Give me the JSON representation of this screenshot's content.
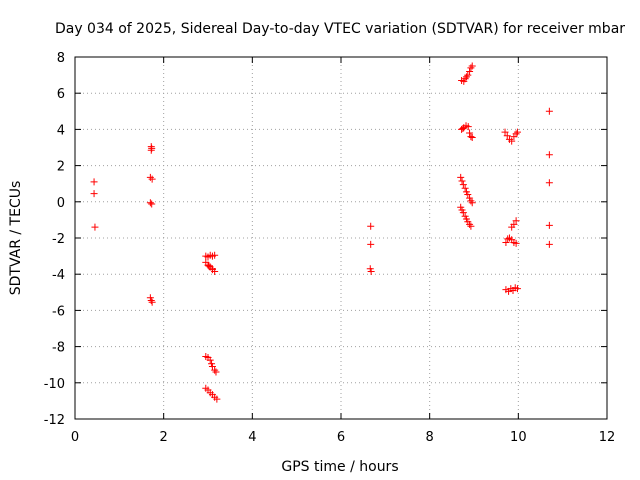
{
  "chart_data": {
    "type": "scatter",
    "title": "Day 034 of 2025, Sidereal Day-to-day VTEC variation (SDTVAR) for receiver mbar",
    "xlabel": "GPS time / hours",
    "ylabel": "SDTVAR / TECUs",
    "xlim": [
      0,
      12
    ],
    "ylim": [
      -12,
      8
    ],
    "x_ticks": [
      0,
      2,
      4,
      6,
      8,
      10,
      12
    ],
    "y_ticks": [
      -12,
      -10,
      -8,
      -6,
      -4,
      -2,
      0,
      2,
      4,
      6,
      8
    ],
    "grid": true,
    "marker": "plus",
    "colors": {
      "series": "#ff0000",
      "axes": "#000000",
      "grid": "#a0a0a0"
    },
    "series": [
      {
        "name": "SDTVAR",
        "points": [
          [
            0.43,
            1.1
          ],
          [
            0.43,
            0.45
          ],
          [
            0.45,
            -1.4
          ],
          [
            1.72,
            3.05
          ],
          [
            1.73,
            2.95
          ],
          [
            1.72,
            2.85
          ],
          [
            1.7,
            1.35
          ],
          [
            1.74,
            1.25
          ],
          [
            1.7,
            -0.05
          ],
          [
            1.73,
            -0.12
          ],
          [
            1.7,
            -5.3
          ],
          [
            1.72,
            -5.45
          ],
          [
            1.74,
            -5.55
          ],
          [
            2.95,
            -3.0
          ],
          [
            3.0,
            -3.05
          ],
          [
            3.05,
            -2.95
          ],
          [
            3.1,
            -3.0
          ],
          [
            3.15,
            -2.95
          ],
          [
            2.95,
            -3.35
          ],
          [
            3.0,
            -3.5
          ],
          [
            3.05,
            -3.6
          ],
          [
            3.1,
            -3.75
          ],
          [
            3.15,
            -3.85
          ],
          [
            3.1,
            -3.7
          ],
          [
            3.02,
            -3.55
          ],
          [
            2.95,
            -8.55
          ],
          [
            3.0,
            -8.6
          ],
          [
            3.05,
            -8.75
          ],
          [
            3.08,
            -8.95
          ],
          [
            3.1,
            -9.1
          ],
          [
            3.15,
            -9.3
          ],
          [
            3.18,
            -9.4
          ],
          [
            2.95,
            -10.3
          ],
          [
            3.0,
            -10.4
          ],
          [
            3.05,
            -10.55
          ],
          [
            3.1,
            -10.65
          ],
          [
            3.15,
            -10.8
          ],
          [
            3.2,
            -10.9
          ],
          [
            6.67,
            -1.35
          ],
          [
            6.67,
            -2.35
          ],
          [
            6.66,
            -3.7
          ],
          [
            6.68,
            -3.85
          ],
          [
            8.72,
            6.7
          ],
          [
            8.77,
            6.65
          ],
          [
            8.8,
            6.8
          ],
          [
            8.83,
            6.9
          ],
          [
            8.86,
            7.0
          ],
          [
            8.9,
            7.2
          ],
          [
            8.93,
            7.4
          ],
          [
            8.96,
            7.5
          ],
          [
            8.72,
            4.0
          ],
          [
            8.77,
            4.1
          ],
          [
            8.82,
            4.2
          ],
          [
            8.87,
            4.15
          ],
          [
            8.9,
            3.8
          ],
          [
            8.93,
            3.6
          ],
          [
            8.96,
            3.55
          ],
          [
            8.75,
            4.05
          ],
          [
            8.7,
            1.35
          ],
          [
            8.73,
            1.15
          ],
          [
            8.76,
            0.95
          ],
          [
            8.8,
            0.75
          ],
          [
            8.83,
            0.55
          ],
          [
            8.86,
            0.4
          ],
          [
            8.9,
            0.2
          ],
          [
            8.93,
            0.05
          ],
          [
            8.96,
            -0.05
          ],
          [
            8.7,
            -0.3
          ],
          [
            8.73,
            -0.45
          ],
          [
            8.76,
            -0.6
          ],
          [
            8.8,
            -0.8
          ],
          [
            8.83,
            -0.95
          ],
          [
            8.86,
            -1.1
          ],
          [
            8.9,
            -1.25
          ],
          [
            8.93,
            -1.35
          ],
          [
            9.7,
            3.85
          ],
          [
            9.75,
            3.65
          ],
          [
            9.8,
            3.45
          ],
          [
            9.85,
            3.35
          ],
          [
            9.9,
            3.6
          ],
          [
            9.95,
            3.75
          ],
          [
            9.98,
            3.85
          ],
          [
            9.72,
            -2.25
          ],
          [
            9.76,
            -2.05
          ],
          [
            9.8,
            -2.0
          ],
          [
            9.85,
            -2.1
          ],
          [
            9.9,
            -2.25
          ],
          [
            9.95,
            -2.3
          ],
          [
            9.85,
            -1.4
          ],
          [
            9.9,
            -1.25
          ],
          [
            9.95,
            -1.05
          ],
          [
            9.72,
            -4.85
          ],
          [
            9.78,
            -4.95
          ],
          [
            9.83,
            -4.8
          ],
          [
            9.88,
            -4.9
          ],
          [
            9.93,
            -4.75
          ],
          [
            9.98,
            -4.8
          ],
          [
            10.7,
            5.0
          ],
          [
            10.7,
            2.6
          ],
          [
            10.7,
            1.05
          ],
          [
            10.7,
            -1.3
          ],
          [
            10.7,
            -2.35
          ]
        ]
      }
    ]
  }
}
